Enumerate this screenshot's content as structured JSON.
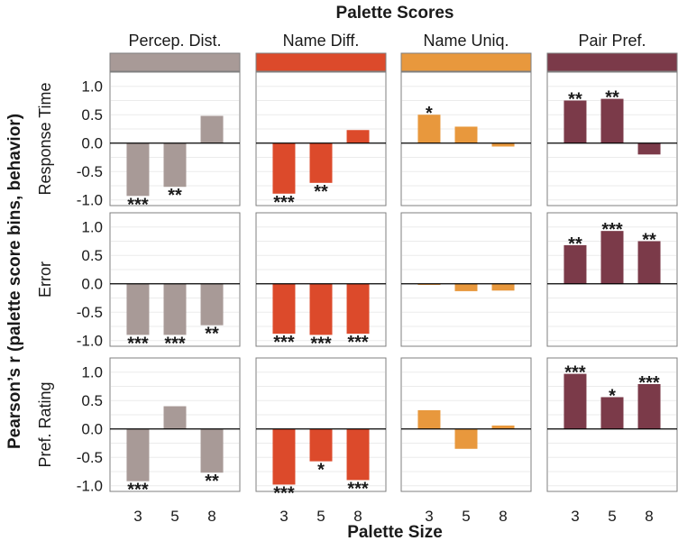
{
  "chart_data": {
    "type": "bar",
    "title": "Palette Scores",
    "xlabel": "Palette Size",
    "ylabel": "Pearson’s r (palette score bins, behavior)",
    "categories": [
      "3",
      "5",
      "8"
    ],
    "ylim": [
      -1.1,
      1.25
    ],
    "yticks": [
      "-1.0",
      "-0.5",
      "0.0",
      "0.5",
      "1.0"
    ],
    "grid": true,
    "columns": [
      {
        "name": "Percep. Dist.",
        "color": "#a89a97"
      },
      {
        "name": "Name Diff.",
        "color": "#dc4a2b"
      },
      {
        "name": "Name Uniq.",
        "color": "#e8983d"
      },
      {
        "name": "Pair Pref.",
        "color": "#7b3a49"
      }
    ],
    "rows": [
      {
        "name": "Response Time"
      },
      {
        "name": "Error"
      },
      {
        "name": "Pref. Rating"
      }
    ],
    "panels": [
      [
        {
          "values": [
            -0.93,
            -0.77,
            0.48
          ],
          "sig": [
            "***",
            "**",
            ""
          ]
        },
        {
          "values": [
            -0.89,
            -0.7,
            0.23
          ],
          "sig": [
            "***",
            "**",
            ""
          ]
        },
        {
          "values": [
            0.5,
            0.29,
            -0.06
          ],
          "sig": [
            "*",
            "",
            ""
          ]
        },
        {
          "values": [
            0.75,
            0.78,
            -0.2
          ],
          "sig": [
            "**",
            "**",
            ""
          ]
        }
      ],
      [
        {
          "values": [
            -0.9,
            -0.9,
            -0.73
          ],
          "sig": [
            "***",
            "***",
            "**"
          ]
        },
        {
          "values": [
            -0.88,
            -0.9,
            -0.88
          ],
          "sig": [
            "***",
            "***",
            "***"
          ]
        },
        {
          "values": [
            -0.02,
            -0.13,
            -0.12
          ],
          "sig": [
            "",
            "",
            ""
          ]
        },
        {
          "values": [
            0.68,
            0.93,
            0.75
          ],
          "sig": [
            "**",
            "***",
            "**"
          ]
        }
      ],
      [
        {
          "values": [
            -0.92,
            0.4,
            -0.77
          ],
          "sig": [
            "***",
            "",
            "**"
          ]
        },
        {
          "values": [
            -0.98,
            -0.57,
            -0.9
          ],
          "sig": [
            "***",
            "*",
            "***"
          ]
        },
        {
          "values": [
            0.33,
            -0.35,
            0.06
          ],
          "sig": [
            "",
            "",
            ""
          ]
        },
        {
          "values": [
            0.97,
            0.56,
            0.79
          ],
          "sig": [
            "***",
            "*",
            "***"
          ]
        }
      ]
    ]
  }
}
